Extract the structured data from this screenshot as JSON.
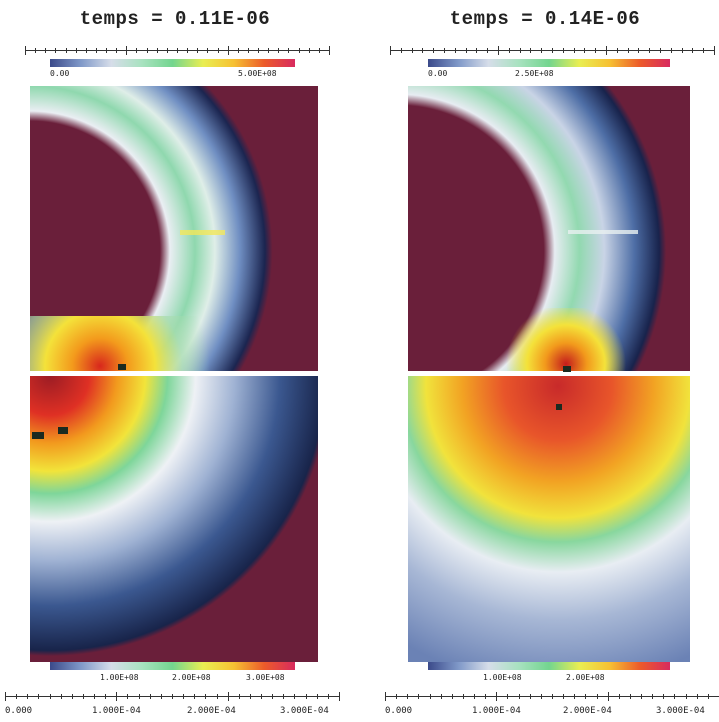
{
  "panels": [
    {
      "title": "temps = 0.11E-06",
      "top_colorbar": {
        "min_label": "0.00",
        "max_label": "5.00E+08"
      },
      "bottom_colorbar": {
        "labels": [
          "1.00E+08",
          "2.00E+08",
          "3.00E+08"
        ]
      },
      "x_axis": {
        "labels": [
          "0.000",
          "1.000E-04",
          "2.000E-04",
          "3.000E-04"
        ]
      }
    },
    {
      "title": "temps = 0.14E-06",
      "top_colorbar": {
        "min_label": "0.00",
        "max_label": "2.50E+08"
      },
      "bottom_colorbar": {
        "labels": [
          "1.00E+08",
          "2.00E+08"
        ]
      },
      "x_axis": {
        "labels": [
          "0.000",
          "1.000E-04",
          "2.000E-04",
          "3.000E-04"
        ]
      }
    }
  ],
  "colormap": [
    "#ffffff",
    "#1f2c55",
    "#4d6fa8",
    "#b9c6dc",
    "#eef0f4",
    "#98dcb0",
    "#6cd38c",
    "#f1e63a",
    "#f6a41c",
    "#df3024",
    "#6a1f3a"
  ]
}
